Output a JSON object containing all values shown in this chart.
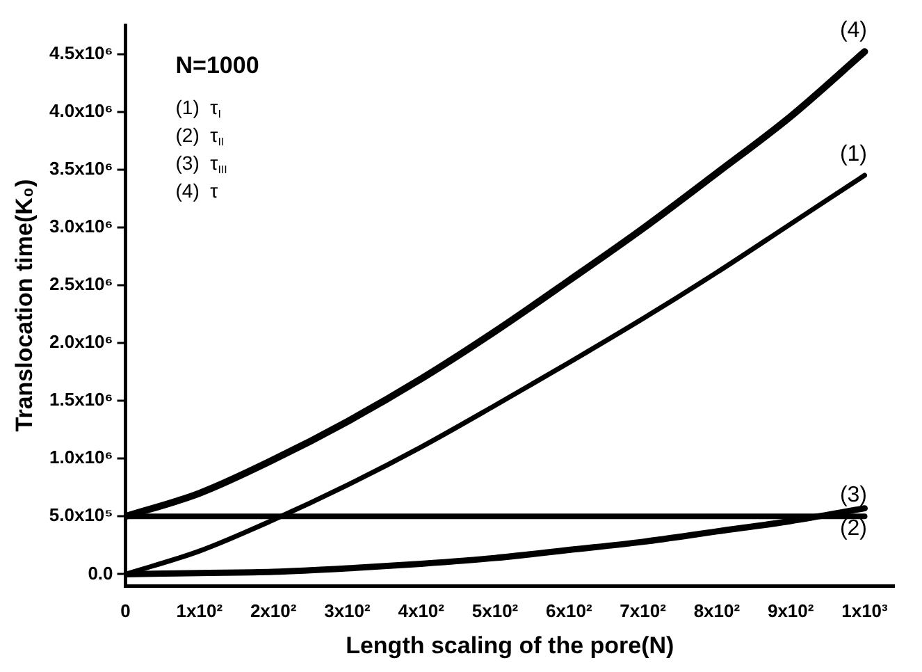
{
  "chart_data": {
    "type": "line",
    "xlabel": "Length scaling of the pore(N)",
    "ylabel": "Translocation time(K₀)",
    "x": [
      0,
      100,
      200,
      300,
      400,
      500,
      600,
      700,
      800,
      900,
      1000
    ],
    "series": [
      {
        "name": "(1)",
        "color": "#000000",
        "values": [
          0,
          200000,
          470000,
          770000,
          1100000,
          1460000,
          1830000,
          2210000,
          2610000,
          3030000,
          3450000
        ]
      },
      {
        "name": "(2)",
        "color": "#000000",
        "values": [
          0,
          10000,
          20000,
          50000,
          90000,
          140000,
          210000,
          280000,
          370000,
          460000,
          570000
        ]
      },
      {
        "name": "(3)",
        "color": "#000000",
        "values": [
          500000,
          500000,
          500000,
          500000,
          500000,
          500000,
          500000,
          500000,
          500000,
          500000,
          500000
        ]
      },
      {
        "name": "(4)",
        "color": "#000000",
        "values": [
          500000,
          700000,
          990000,
          1320000,
          1690000,
          2100000,
          2540000,
          2990000,
          3470000,
          3960000,
          4520000
        ]
      }
    ],
    "xlim": [
      0,
      1040
    ],
    "xticks": [
      0,
      {
        "value": 100,
        "label": "1x10²"
      },
      {
        "value": 200,
        "label": "2x10²"
      },
      {
        "value": 300,
        "label": "3x10²"
      },
      {
        "value": 400,
        "label": "4x10²"
      },
      {
        "value": 500,
        "label": "5x10²"
      },
      {
        "value": 600,
        "label": "6x10²"
      },
      {
        "value": 700,
        "label": "7x10²"
      },
      {
        "value": 800,
        "label": "8x10²"
      },
      {
        "value": 900,
        "label": "9x10²"
      },
      {
        "value": 1000,
        "label": "1x10³"
      }
    ],
    "ylim": [
      -100000,
      4750000
    ],
    "yticks": [
      {
        "value": 0,
        "label": "0.0"
      },
      {
        "value": 500000,
        "label": "5.0x10⁵"
      },
      {
        "value": 1000000,
        "label": "1.0x10⁶"
      },
      {
        "value": 1500000,
        "label": "1.5x10⁶"
      },
      {
        "value": 2000000,
        "label": "2.0x10⁶"
      },
      {
        "value": 2500000,
        "label": "2.5x10⁶"
      },
      {
        "value": 3000000,
        "label": "3.0x10⁶"
      },
      {
        "value": 3500000,
        "label": "3.5x10⁶"
      },
      {
        "value": 4000000,
        "label": "4.0x10⁶"
      },
      {
        "value": 4500000,
        "label": "4.5x10⁶"
      }
    ],
    "grid": false,
    "legend": false,
    "marker": "none",
    "line_style": "solid",
    "annotations": [
      "N=1000",
      "(1)  τ$_{I}$",
      "(2)  τ$_{II}$",
      "(3)  τ$_{III}$",
      "(4)  τ"
    ]
  }
}
